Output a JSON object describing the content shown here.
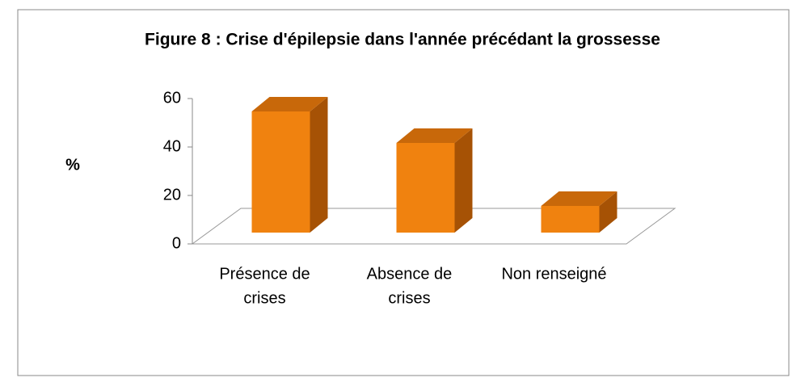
{
  "chart_data": {
    "type": "bar3d",
    "title": "Figure 8 : Crise d'épilepsie dans l'année précédant la grossesse",
    "y_label": "%",
    "categories": [
      [
        "Présence de",
        "crises"
      ],
      [
        "Absence de",
        "crises"
      ],
      [
        "Non renseigné"
      ]
    ],
    "values": [
      50,
      37,
      11
    ],
    "color": "#f0820f",
    "ylim": [
      0,
      60
    ],
    "yticks": [
      0,
      20,
      40,
      60
    ]
  }
}
